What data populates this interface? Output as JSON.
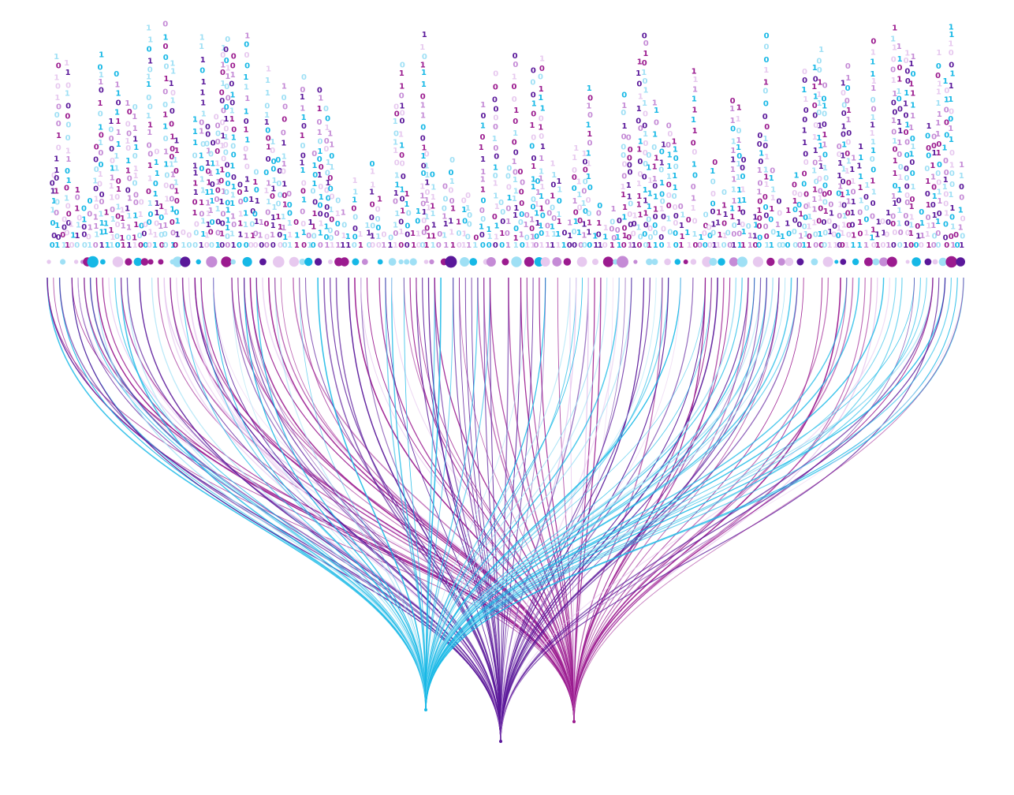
{
  "illustration": {
    "theme": "binary data streams flowing into three network nodes",
    "glyphs": [
      "0",
      "1"
    ],
    "palette": {
      "cyan": "#16b8e6",
      "violet": "#5a189a",
      "magenta": "#9b1b8f",
      "lilac": "#c58bd6",
      "pale_lilac": "#e7c9ef",
      "pale_cyan": "#9fe0f5",
      "background": "#ffffff"
    },
    "hubs": [
      {
        "name": "cyan-hub",
        "color": "#16b8e6"
      },
      {
        "name": "violet-hub",
        "color": "#5a189a"
      },
      {
        "name": "magenta-hub",
        "color": "#9b1b8f"
      }
    ]
  }
}
